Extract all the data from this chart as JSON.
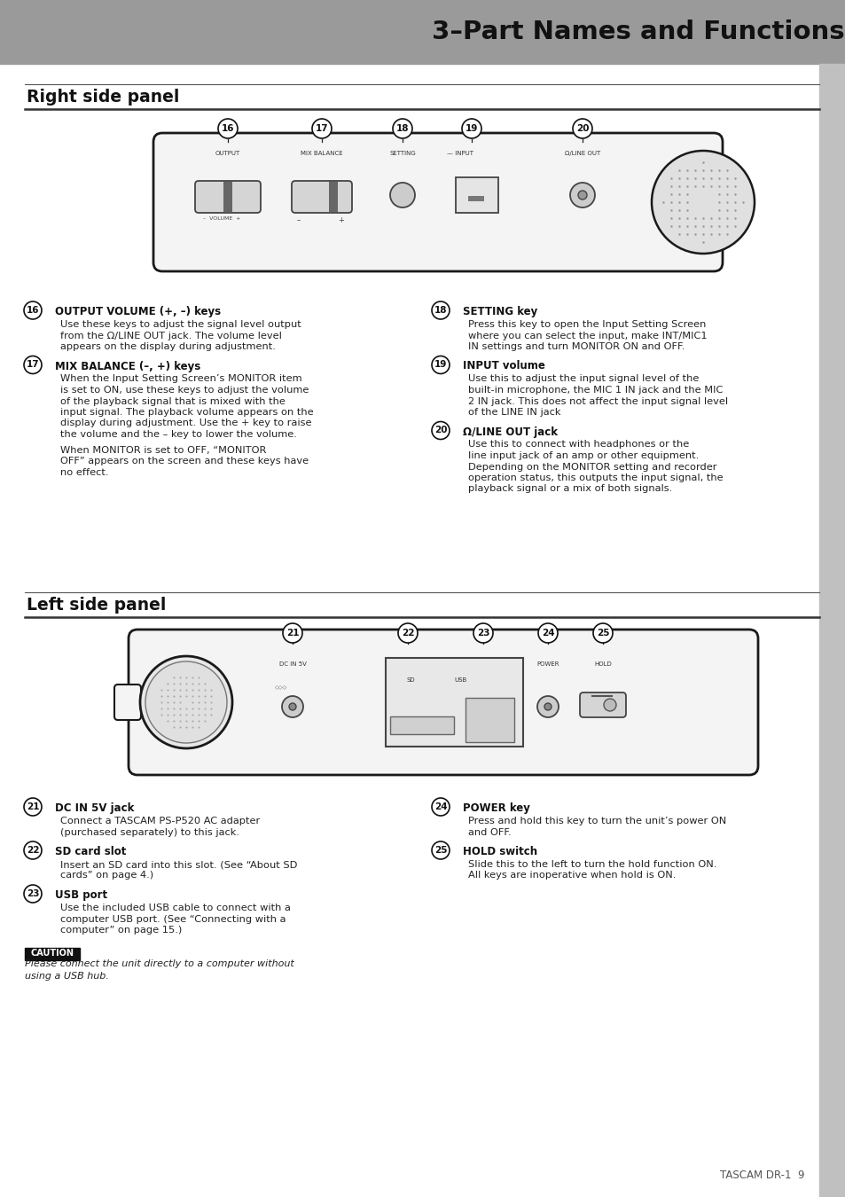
{
  "title": "3–Part Names and Functions",
  "right_panel_title": "Right side panel",
  "left_panel_title": "Left side panel",
  "right_items": [
    {
      "num": "16",
      "bold": "OUTPUT VOLUME (+, –) keys",
      "body": "Use these keys to adjust the signal level output\nfrom the Ω/LINE OUT jack. The volume level\nappears on the display during adjustment."
    },
    {
      "num": "17",
      "bold": "MIX BALANCE (–, +) keys",
      "body": "When the Input Setting Screen’s MONITOR item\nis set to ON, use these keys to adjust the volume\nof the playback signal that is mixed with the\ninput signal. The playback volume appears on the\ndisplay during adjustment. Use the + key to raise\nthe volume and the – key to lower the volume.\n\nWhen MONITOR is set to OFF, “MONITOR\nOFF” appears on the screen and these keys have\nno effect."
    },
    {
      "num": "18",
      "bold": "SETTING key",
      "body": "Press this key to open the Input Setting Screen\nwhere you can select the input, make INT/MIC1\nIN settings and turn MONITOR ON and OFF."
    },
    {
      "num": "19",
      "bold": "INPUT volume",
      "body": "Use this to adjust the input signal level of the\nbuilt-in microphone, the MIC 1 IN jack and the MIC\n2 IN jack. This does not affect the input signal level\nof the LINE IN jack"
    },
    {
      "num": "20",
      "bold": "Ω/LINE OUT jack",
      "body": "Use this to connect with headphones or the\nline input jack of an amp or other equipment.\nDepending on the MONITOR setting and recorder\noperation status, this outputs the input signal, the\nplayback signal or a mix of both signals."
    }
  ],
  "left_items": [
    {
      "num": "21",
      "bold": "DC IN 5V jack",
      "body": "Connect a TASCAM PS-P520 AC adapter\n(purchased separately) to this jack."
    },
    {
      "num": "22",
      "bold": "SD card slot",
      "body": "Insert an SD card into this slot. (See “About SD\ncards” on page 4.)"
    },
    {
      "num": "23",
      "bold": "USB port",
      "body": "Use the included USB cable to connect with a\ncomputer USB port. (See “Connecting with a\ncomputer” on page 15.)"
    },
    {
      "num": "24",
      "bold": "POWER key",
      "body": "Press and hold this key to turn the unit’s power ON\nand OFF."
    },
    {
      "num": "25",
      "bold": "HOLD switch",
      "body": "Slide this to the left to turn the hold function ON.\nAll keys are inoperative when hold is ON."
    }
  ],
  "caution_label": "CAUTION",
  "caution_text": "Please connect the unit directly to a computer without\nusing a USB hub.",
  "footer": "TASCAM DR-1  9",
  "header_gray": "#9a9a9a",
  "right_strip_gray": "#c0c0c0",
  "body_bg": "#f4f4f4",
  "line_color": "#222222"
}
